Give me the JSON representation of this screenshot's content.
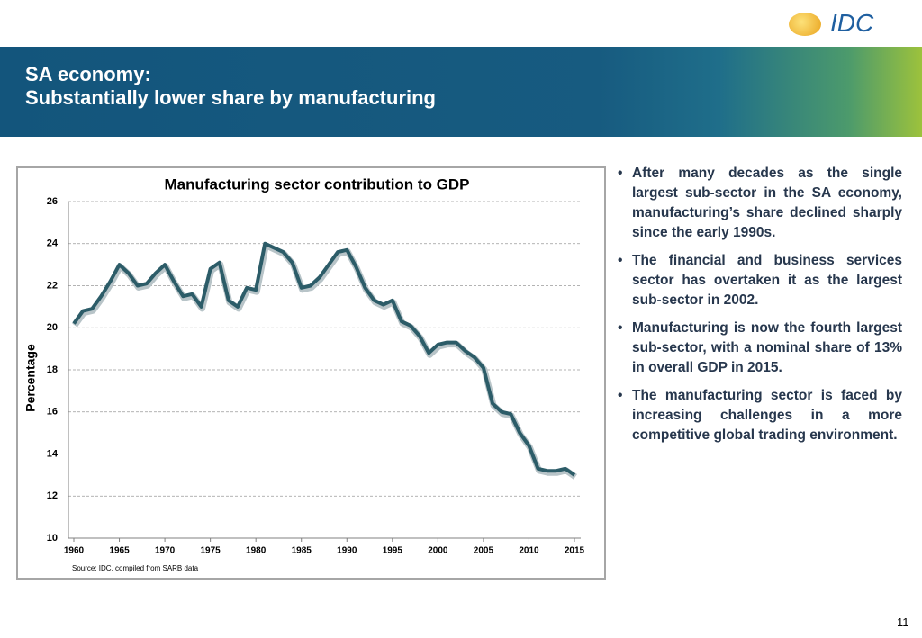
{
  "header": {
    "title_line1": "SA economy:",
    "title_line2": "Substantially lower share by manufacturing",
    "logo": "IDC"
  },
  "chart_data": {
    "type": "line",
    "title": "Manufacturing sector contribution to GDP",
    "ylabel": "Percentage",
    "note": "Source: IDC, compiled from SARB data",
    "x": [
      1960,
      1961,
      1962,
      1963,
      1964,
      1965,
      1966,
      1967,
      1968,
      1969,
      1970,
      1971,
      1972,
      1973,
      1974,
      1975,
      1976,
      1977,
      1978,
      1979,
      1980,
      1981,
      1982,
      1983,
      1984,
      1985,
      1986,
      1987,
      1988,
      1989,
      1990,
      1991,
      1992,
      1993,
      1994,
      1995,
      1996,
      1997,
      1998,
      1999,
      2000,
      2001,
      2002,
      2003,
      2004,
      2005,
      2006,
      2007,
      2008,
      2009,
      2010,
      2011,
      2012,
      2013,
      2014,
      2015
    ],
    "values": [
      20.2,
      20.8,
      20.9,
      21.5,
      22.2,
      23.0,
      22.6,
      22.0,
      22.1,
      22.6,
      23.0,
      22.2,
      21.5,
      21.6,
      21.0,
      22.8,
      23.1,
      21.3,
      21.0,
      21.9,
      21.8,
      24.0,
      23.8,
      23.6,
      23.1,
      21.9,
      22.0,
      22.4,
      23.0,
      23.6,
      23.7,
      22.9,
      21.9,
      21.3,
      21.1,
      21.3,
      20.3,
      20.1,
      19.6,
      18.8,
      19.2,
      19.3,
      19.3,
      18.9,
      18.6,
      18.1,
      16.4,
      16.0,
      15.9,
      15.0,
      14.4,
      13.3,
      13.2,
      13.2,
      13.3,
      13.0
    ],
    "color": "#2c5c68",
    "xlim": [
      1960,
      2015
    ],
    "xticks": [
      1960,
      1965,
      1970,
      1975,
      1980,
      1985,
      1990,
      1995,
      2000,
      2005,
      2010,
      2015
    ],
    "ylim": [
      10,
      26
    ],
    "yticks": [
      10,
      12,
      14,
      16,
      18,
      20,
      22,
      24,
      26
    ],
    "grid": true
  },
  "bullets": [
    "After many decades as the single largest sub-sector in the SA economy, manufacturing’s share declined sharply since the early 1990s.",
    "The financial and business services sector has overtaken it as the largest sub-sector in 2002.",
    "Manufacturing is now the fourth largest sub-sector, with a nominal share of 13% in overall GDP in 2015.",
    "The manufacturing sector is faced by increasing challenges in a more competitive global trading environment."
  ],
  "page_number": "11"
}
